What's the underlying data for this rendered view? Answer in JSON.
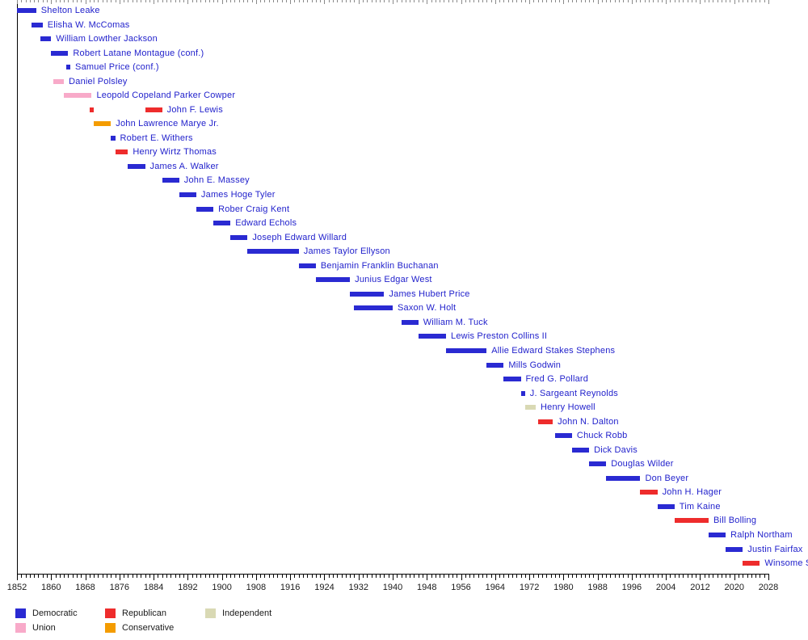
{
  "chart_data": {
    "type": "timeline",
    "title": "",
    "description": "Horizontal timeline (gantt-style) of officeholders with party-colored term bars",
    "x_axis": {
      "start": 1852,
      "end": 2028,
      "major_step": 8,
      "minor_step": 1,
      "tick_labels": [
        "1852",
        "1860",
        "1868",
        "1876",
        "1884",
        "1892",
        "1900",
        "1908",
        "1916",
        "1924",
        "1932",
        "1940",
        "1948",
        "1956",
        "1964",
        "1972",
        "1980",
        "1988",
        "1996",
        "2004",
        "2012",
        "2020",
        "2028"
      ]
    },
    "label_color": "#2222cc",
    "party_colors": {
      "Democratic": "#2a2ad2",
      "Republican": "#ee2c2c",
      "Union": "#f8aac9",
      "Conservative": "#f49c00",
      "Independent": "#d9d9b4"
    },
    "rows": [
      {
        "name": "Shelton Leake",
        "party": "Democratic",
        "terms": [
          [
            1852,
            1856.5
          ]
        ]
      },
      {
        "name": "Elisha W. McComas",
        "party": "Democratic",
        "terms": [
          [
            1855.5,
            1858
          ]
        ]
      },
      {
        "name": "William Lowther Jackson",
        "party": "Democratic",
        "terms": [
          [
            1857.5,
            1860
          ]
        ]
      },
      {
        "name": "Robert Latane Montague (conf.)",
        "party": "Democratic",
        "terms": [
          [
            1860,
            1864
          ]
        ]
      },
      {
        "name": "Samuel Price (conf.)",
        "party": "Democratic",
        "terms": [
          [
            1863.5,
            1864.5
          ]
        ]
      },
      {
        "name": "Daniel Polsley",
        "party": "Union",
        "terms": [
          [
            1860.5,
            1863
          ]
        ]
      },
      {
        "name": "Leopold Copeland Parker Cowper",
        "party": "Union",
        "terms": [
          [
            1863,
            1869.5
          ]
        ]
      },
      {
        "name": "John F. Lewis",
        "party": "Republican",
        "terms": [
          [
            1869,
            1870
          ],
          [
            1882,
            1886
          ]
        ]
      },
      {
        "name": "John Lawrence Marye Jr.",
        "party": "Conservative",
        "terms": [
          [
            1870,
            1874
          ]
        ]
      },
      {
        "name": "Robert E. Withers",
        "party": "Democratic",
        "terms": [
          [
            1874,
            1875
          ]
        ]
      },
      {
        "name": "Henry Wirtz Thomas",
        "party": "Republican",
        "terms": [
          [
            1875,
            1878
          ]
        ]
      },
      {
        "name": "James A. Walker",
        "party": "Democratic",
        "terms": [
          [
            1878,
            1882
          ]
        ]
      },
      {
        "name": "John E. Massey",
        "party": "Democratic",
        "terms": [
          [
            1886,
            1890
          ]
        ]
      },
      {
        "name": "James Hoge Tyler",
        "party": "Democratic",
        "terms": [
          [
            1890,
            1894
          ]
        ]
      },
      {
        "name": "Rober Craig Kent",
        "party": "Democratic",
        "terms": [
          [
            1894,
            1898
          ]
        ]
      },
      {
        "name": "Edward Echols",
        "party": "Democratic",
        "terms": [
          [
            1898,
            1902
          ]
        ]
      },
      {
        "name": "Joseph Edward Willard",
        "party": "Democratic",
        "terms": [
          [
            1902,
            1906
          ]
        ]
      },
      {
        "name": "James Taylor Ellyson",
        "party": "Democratic",
        "terms": [
          [
            1906,
            1918
          ]
        ]
      },
      {
        "name": "Benjamin Franklin Buchanan",
        "party": "Democratic",
        "terms": [
          [
            1918,
            1922
          ]
        ]
      },
      {
        "name": "Junius Edgar West",
        "party": "Democratic",
        "terms": [
          [
            1922,
            1930
          ]
        ]
      },
      {
        "name": "James Hubert Price",
        "party": "Democratic",
        "terms": [
          [
            1930,
            1938
          ]
        ]
      },
      {
        "name": "Saxon W. Holt",
        "party": "Democratic",
        "terms": [
          [
            1931,
            1940
          ]
        ]
      },
      {
        "name": "William M. Tuck",
        "party": "Democratic",
        "terms": [
          [
            1942,
            1946
          ]
        ]
      },
      {
        "name": "Lewis Preston Collins II",
        "party": "Democratic",
        "terms": [
          [
            1946,
            1952.5
          ]
        ]
      },
      {
        "name": "Allie Edward Stakes Stephens",
        "party": "Democratic",
        "terms": [
          [
            1952.5,
            1962
          ]
        ]
      },
      {
        "name": "Mills Godwin",
        "party": "Democratic",
        "terms": [
          [
            1962,
            1966
          ]
        ]
      },
      {
        "name": "Fred G. Pollard",
        "party": "Democratic",
        "terms": [
          [
            1966,
            1970
          ]
        ]
      },
      {
        "name": "J. Sargeant Reynolds",
        "party": "Democratic",
        "terms": [
          [
            1970,
            1971
          ]
        ]
      },
      {
        "name": "Henry Howell",
        "party": "Independent",
        "terms": [
          [
            1971,
            1973.5
          ]
        ]
      },
      {
        "name": "John N. Dalton",
        "party": "Republican",
        "terms": [
          [
            1974,
            1977.5
          ]
        ]
      },
      {
        "name": "Chuck Robb",
        "party": "Democratic",
        "terms": [
          [
            1978,
            1982
          ]
        ]
      },
      {
        "name": "Dick Davis",
        "party": "Democratic",
        "terms": [
          [
            1982,
            1986
          ]
        ]
      },
      {
        "name": "Douglas Wilder",
        "party": "Democratic",
        "terms": [
          [
            1986,
            1990
          ]
        ]
      },
      {
        "name": "Don Beyer",
        "party": "Democratic",
        "terms": [
          [
            1990,
            1998
          ]
        ]
      },
      {
        "name": "John H. Hager",
        "party": "Republican",
        "terms": [
          [
            1998,
            2002
          ]
        ]
      },
      {
        "name": "Tim Kaine",
        "party": "Democratic",
        "terms": [
          [
            2002,
            2006
          ]
        ]
      },
      {
        "name": "Bill Bolling",
        "party": "Republican",
        "terms": [
          [
            2006,
            2014
          ]
        ]
      },
      {
        "name": "Ralph Northam",
        "party": "Democratic",
        "terms": [
          [
            2014,
            2018
          ]
        ]
      },
      {
        "name": "Justin Fairfax",
        "party": "Democratic",
        "terms": [
          [
            2018,
            2022
          ]
        ]
      },
      {
        "name": "Winsome Se",
        "party": "Republican",
        "terms": [
          [
            2022,
            2026
          ]
        ]
      }
    ],
    "legend": {
      "items": [
        {
          "label": "Democratic",
          "party": "Democratic",
          "row": 0,
          "col": 0
        },
        {
          "label": "Republican",
          "party": "Republican",
          "row": 0,
          "col": 1
        },
        {
          "label": "Independent",
          "party": "Independent",
          "row": 0,
          "col": 2
        },
        {
          "label": "Union",
          "party": "Union",
          "row": 1,
          "col": 0
        },
        {
          "label": "Conservative",
          "party": "Conservative",
          "row": 1,
          "col": 1
        }
      ]
    }
  }
}
